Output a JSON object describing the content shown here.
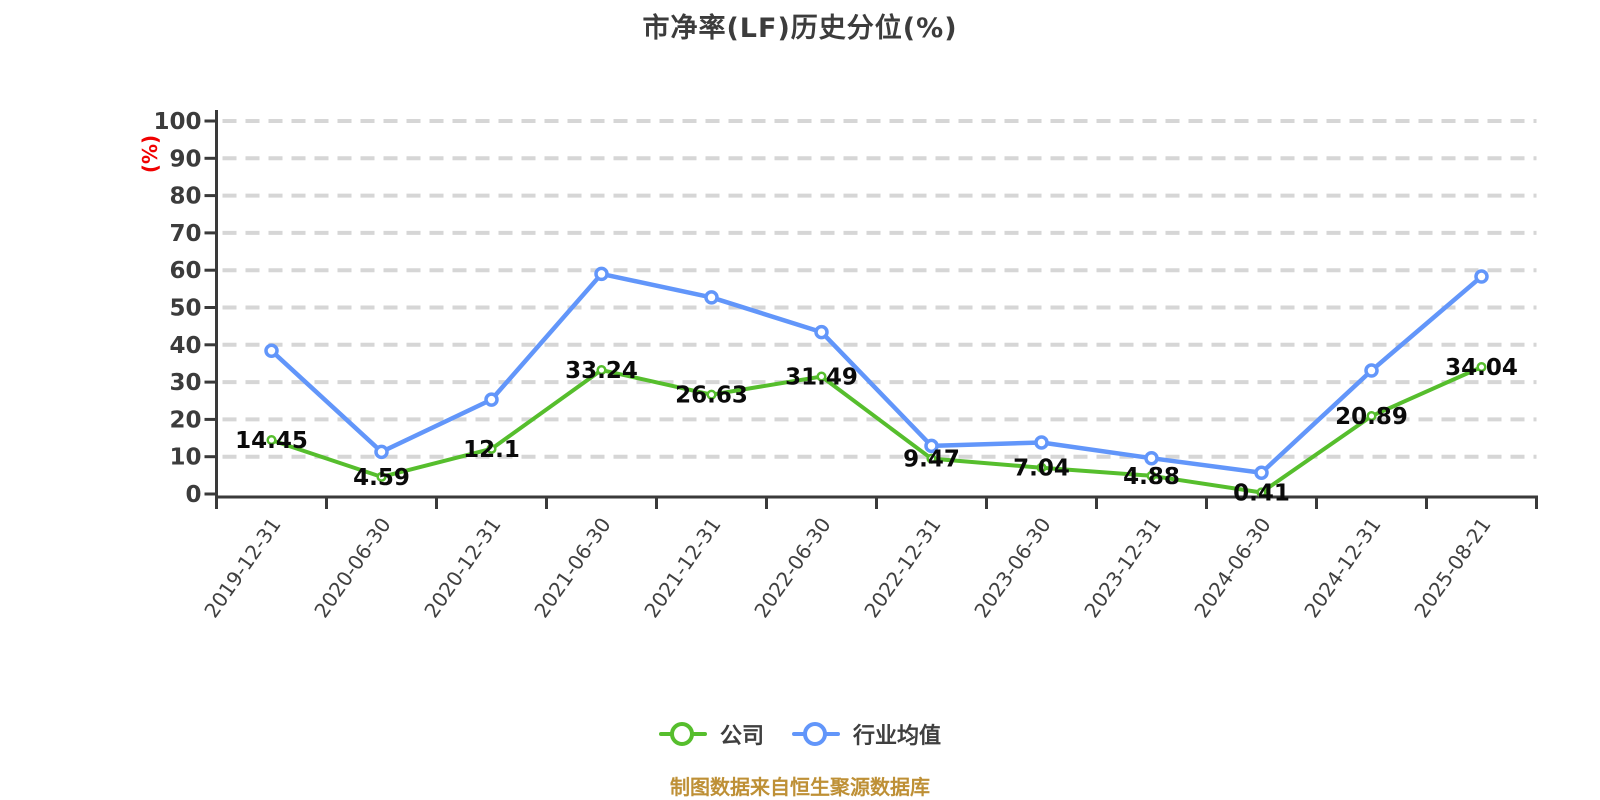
{
  "title": "市净率(LF)历史分位(%)",
  "footer_note": "制图数据来自恒生聚源数据库",
  "legend": {
    "items": [
      {
        "label": "公司",
        "color": "#56BE2D"
      },
      {
        "label": "行业均值",
        "color": "#6296FA"
      }
    ]
  },
  "colors": {
    "background": "#ffffff",
    "title_text": "#3c3c3c",
    "axis_line": "#3a3a3a",
    "tick_label": "#3c3c3c",
    "x_tick_label": "#404040",
    "grid_line": "#d6d6d6",
    "company_green": "#56BE2D",
    "industry_blue": "#6296FA",
    "value_label": "#0a0a0a",
    "unit_label_red": "#f00000",
    "footer_orange": "#be9036",
    "marker_fill": "#ffffff"
  },
  "chart_data": {
    "type": "line",
    "title": "市净率(LF)历史分位(%)",
    "xlabel": "",
    "ylabel": "(%)",
    "ylim": [
      0,
      100
    ],
    "y_ticks": [
      0,
      10,
      20,
      30,
      40,
      50,
      60,
      70,
      80,
      90,
      100
    ],
    "grid": "horizontal dashed",
    "legend_position": "bottom center",
    "x_label_rotation_deg": -55,
    "categories": [
      "2019-12-31",
      "2020-06-30",
      "2020-12-31",
      "2021-06-30",
      "2021-12-31",
      "2022-06-30",
      "2022-12-31",
      "2023-06-30",
      "2023-12-31",
      "2024-06-30",
      "2024-12-31",
      "2025-08-21"
    ],
    "series": [
      {
        "name": "公司",
        "color": "#56BE2D",
        "show_point_labels": true,
        "values": [
          14.45,
          4.59,
          12.1,
          33.24,
          26.63,
          31.49,
          9.47,
          7.04,
          4.88,
          0.41,
          20.89,
          34.04
        ]
      },
      {
        "name": "行业均值",
        "color": "#6296FA",
        "show_point_labels": false,
        "values": [
          38.4,
          11.3,
          25.3,
          59.0,
          52.7,
          43.4,
          12.9,
          13.8,
          9.6,
          5.7,
          33.1,
          58.3
        ]
      }
    ]
  }
}
